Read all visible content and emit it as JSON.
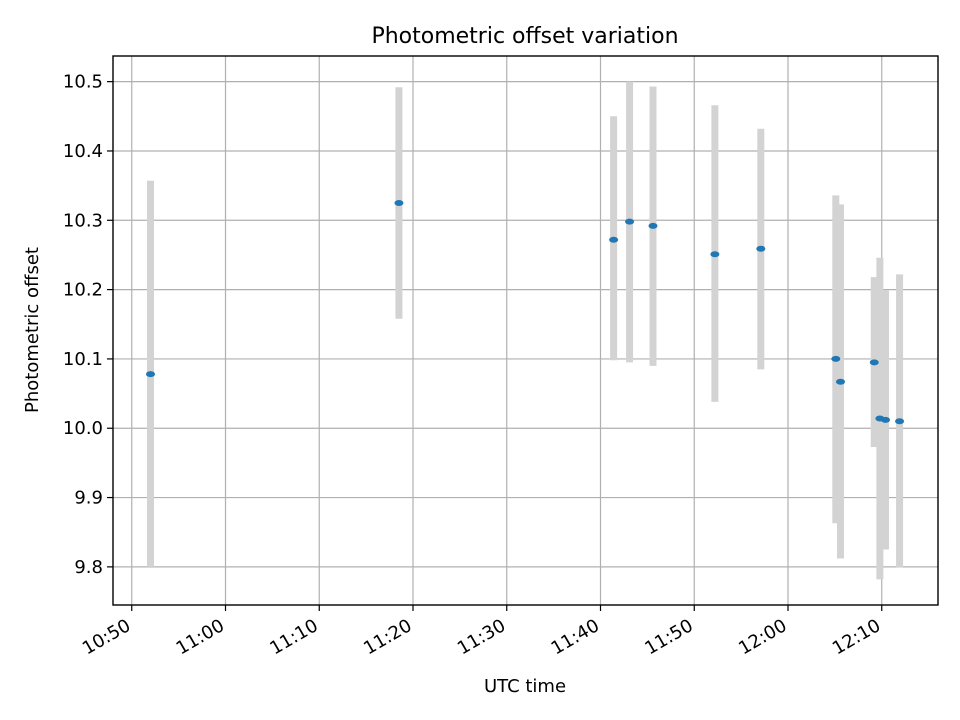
{
  "chart_data": {
    "type": "scatter",
    "title": "Photometric offset variation",
    "xlabel": "UTC time",
    "ylabel": "Photometric offset",
    "grid": true,
    "x_tick_labels": [
      "10:50",
      "11:00",
      "11:10",
      "11:20",
      "11:30",
      "11:40",
      "11:50",
      "12:00",
      "12:10"
    ],
    "y_tick_labels": [
      "9.8",
      "9.9",
      "10.0",
      "10.1",
      "10.2",
      "10.3",
      "10.4",
      "10.5"
    ],
    "xlim": [
      "10:48",
      "12:16"
    ],
    "ylim": [
      9.745,
      10.537
    ],
    "colors": {
      "points": "#1f77b4",
      "errorbars": "#d3d3d3",
      "grid": "#b0b0b0"
    },
    "points": [
      {
        "x": "10:52",
        "y": 10.078,
        "err_low": 9.8,
        "err_high": 10.357
      },
      {
        "x": "11:18.5",
        "y": 10.325,
        "err_low": 10.158,
        "err_high": 10.492
      },
      {
        "x": "11:41.4",
        "y": 10.272,
        "err_low": 10.098,
        "err_high": 10.45
      },
      {
        "x": "11:43.1",
        "y": 10.298,
        "err_low": 10.095,
        "err_high": 10.5
      },
      {
        "x": "11:45.6",
        "y": 10.292,
        "err_low": 10.09,
        "err_high": 10.493
      },
      {
        "x": "11:52.2",
        "y": 10.251,
        "err_low": 10.038,
        "err_high": 10.466
      },
      {
        "x": "11:57.1",
        "y": 10.259,
        "err_low": 10.085,
        "err_high": 10.432
      },
      {
        "x": "12:05.1",
        "y": 10.1,
        "err_low": 9.863,
        "err_high": 10.336
      },
      {
        "x": "12:05.6",
        "y": 10.067,
        "err_low": 9.812,
        "err_high": 10.323
      },
      {
        "x": "12:09.2",
        "y": 10.095,
        "err_low": 9.973,
        "err_high": 10.218
      },
      {
        "x": "12:09.8",
        "y": 10.014,
        "err_low": 9.782,
        "err_high": 10.246
      },
      {
        "x": "12:10.4",
        "y": 10.012,
        "err_low": 9.825,
        "err_high": 10.199
      },
      {
        "x": "12:11.9",
        "y": 10.01,
        "err_low": 9.799,
        "err_high": 10.222
      }
    ]
  }
}
